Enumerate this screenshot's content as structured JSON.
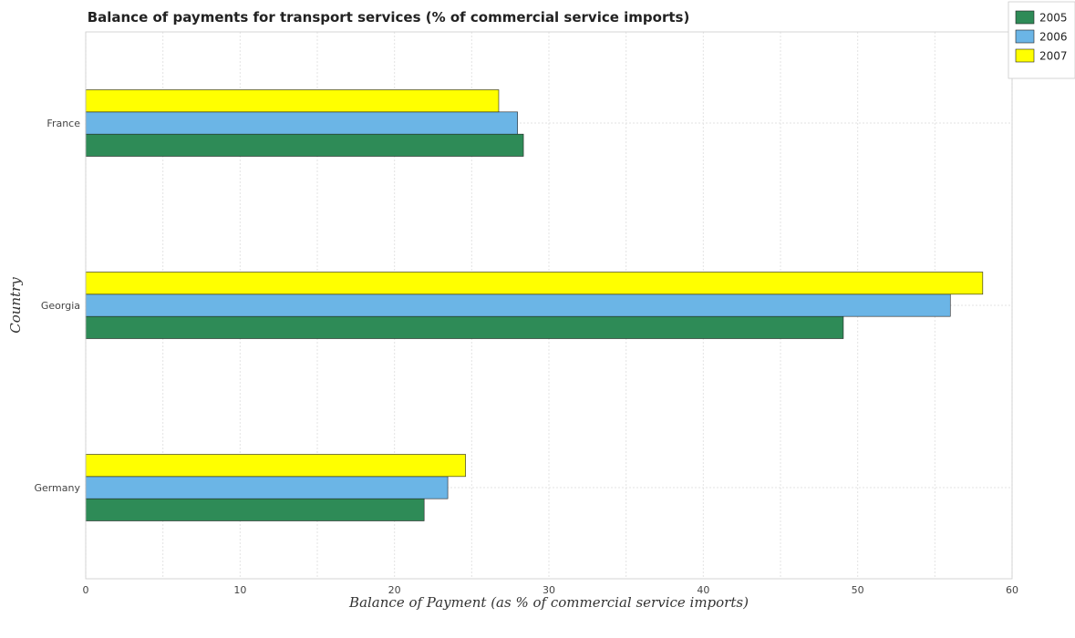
{
  "chart_data": {
    "type": "bar",
    "orientation": "horizontal",
    "title": "Balance of payments for transport services (% of commercial service imports)",
    "xlabel": "Balance of Payment (as % of commercial service imports)",
    "ylabel": "Country",
    "categories": [
      "France",
      "Georgia",
      "Germany"
    ],
    "series": [
      {
        "name": "2005",
        "color": "#2e8b57",
        "values": [
          28.35,
          49.07,
          21.92
        ]
      },
      {
        "name": "2006",
        "color": "#6bb5e6",
        "values": [
          27.97,
          56.0,
          23.45
        ]
      },
      {
        "name": "2007",
        "color": "#ffff00",
        "values": [
          26.75,
          58.1,
          24.6
        ]
      }
    ],
    "xlim": [
      0,
      60
    ],
    "xticks": [
      0,
      10,
      20,
      30,
      40,
      50,
      60
    ],
    "grid": true,
    "legend_position": "top-right"
  }
}
